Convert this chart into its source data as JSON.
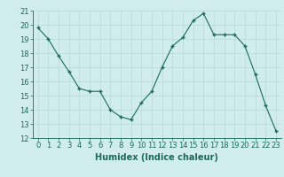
{
  "x": [
    0,
    1,
    2,
    3,
    4,
    5,
    6,
    7,
    8,
    9,
    10,
    11,
    12,
    13,
    14,
    15,
    16,
    17,
    18,
    19,
    20,
    21,
    22,
    23
  ],
  "y": [
    19.8,
    19.0,
    17.8,
    16.7,
    15.5,
    15.3,
    15.3,
    14.0,
    13.5,
    13.3,
    14.5,
    15.3,
    17.0,
    18.5,
    19.1,
    20.3,
    20.8,
    19.3,
    19.3,
    19.3,
    18.5,
    16.5,
    14.3,
    12.5
  ],
  "xlabel": "Humidex (Indice chaleur)",
  "ylim": [
    12,
    21
  ],
  "xlim": [
    -0.5,
    23.5
  ],
  "yticks": [
    12,
    13,
    14,
    15,
    16,
    17,
    18,
    19,
    20,
    21
  ],
  "xticks": [
    0,
    1,
    2,
    3,
    4,
    5,
    6,
    7,
    8,
    9,
    10,
    11,
    12,
    13,
    14,
    15,
    16,
    17,
    18,
    19,
    20,
    21,
    22,
    23
  ],
  "line_color": "#1a6b5a",
  "marker_color": "#1a6b5a",
  "bg_color": "#d0ecec",
  "grid_color": "#b8d8d8",
  "tick_label_color": "#1a6b5a",
  "xlabel_color": "#1a6b5a",
  "font_size": 6,
  "xlabel_font_size": 7
}
